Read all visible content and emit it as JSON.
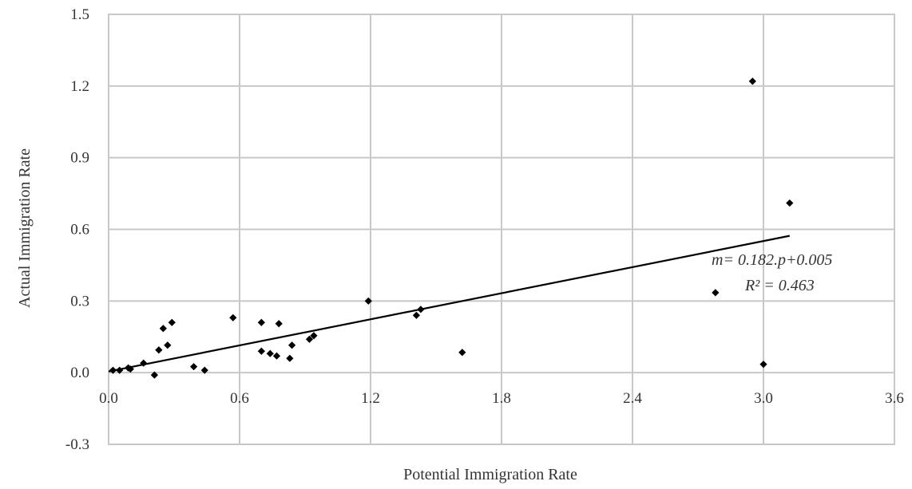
{
  "chart_data": {
    "type": "scatter",
    "title": "",
    "xlabel": "Potential Immigration Rate",
    "ylabel": "Actual Immigration Rate",
    "xlim": [
      0.0,
      3.6
    ],
    "ylim": [
      -0.3,
      1.5
    ],
    "x_ticks": [
      0.0,
      0.6,
      1.2,
      1.8,
      2.4,
      3.0,
      3.6
    ],
    "x_tick_labels": [
      "0.0",
      "0.6",
      "1.2",
      "1.8",
      "2.4",
      "3.0",
      "3.6"
    ],
    "y_ticks": [
      -0.3,
      0.0,
      0.3,
      0.6,
      0.9,
      1.2,
      1.5
    ],
    "y_tick_labels": [
      "-0.3",
      "0.0",
      "0.3",
      "0.6",
      "0.9",
      "1.2",
      "1.5"
    ],
    "grid": true,
    "marker_color": "#000000",
    "points": [
      {
        "x": 0.02,
        "y": 0.01
      },
      {
        "x": 0.05,
        "y": 0.01
      },
      {
        "x": 0.09,
        "y": 0.02
      },
      {
        "x": 0.1,
        "y": 0.015
      },
      {
        "x": 0.16,
        "y": 0.04
      },
      {
        "x": 0.21,
        "y": -0.01
      },
      {
        "x": 0.23,
        "y": 0.095
      },
      {
        "x": 0.25,
        "y": 0.185
      },
      {
        "x": 0.27,
        "y": 0.115
      },
      {
        "x": 0.29,
        "y": 0.21
      },
      {
        "x": 0.39,
        "y": 0.025
      },
      {
        "x": 0.44,
        "y": 0.01
      },
      {
        "x": 0.57,
        "y": 0.23
      },
      {
        "x": 0.7,
        "y": 0.21
      },
      {
        "x": 0.7,
        "y": 0.09
      },
      {
        "x": 0.74,
        "y": 0.08
      },
      {
        "x": 0.77,
        "y": 0.07
      },
      {
        "x": 0.78,
        "y": 0.205
      },
      {
        "x": 0.83,
        "y": 0.06
      },
      {
        "x": 0.84,
        "y": 0.115
      },
      {
        "x": 0.92,
        "y": 0.14
      },
      {
        "x": 0.94,
        "y": 0.155
      },
      {
        "x": 1.19,
        "y": 0.3
      },
      {
        "x": 1.41,
        "y": 0.24
      },
      {
        "x": 1.43,
        "y": 0.265
      },
      {
        "x": 1.62,
        "y": 0.085
      },
      {
        "x": 2.78,
        "y": 0.335
      },
      {
        "x": 2.95,
        "y": 1.22
      },
      {
        "x": 3.0,
        "y": 0.035
      },
      {
        "x": 3.12,
        "y": 0.71
      }
    ],
    "trendline": {
      "slope": 0.182,
      "intercept": 0.005,
      "x_range": [
        0.0,
        3.12
      ]
    },
    "annotations": [
      "m= 0.182.p+0.005",
      "R² = 0.463"
    ]
  }
}
